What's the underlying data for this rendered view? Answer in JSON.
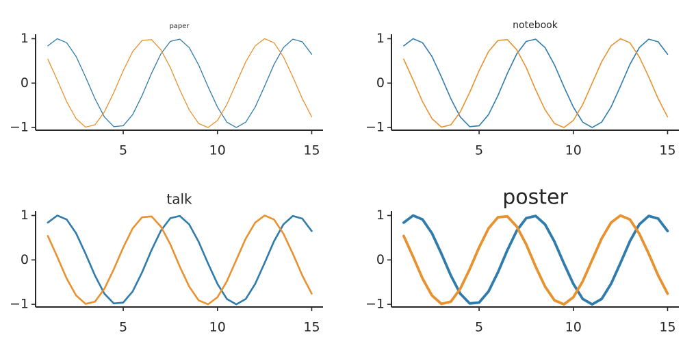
{
  "chart_data": [
    {
      "type": "line",
      "title": "paper",
      "x": [
        1,
        1.5,
        2,
        2.5,
        3,
        3.5,
        4,
        4.5,
        5,
        5.5,
        6,
        6.5,
        7,
        7.5,
        8,
        8.5,
        9,
        9.5,
        10,
        10.5,
        11,
        11.5,
        12,
        12.5,
        13,
        13.5,
        14,
        14.5,
        15
      ],
      "series": [
        {
          "color": "#2f7bab",
          "values": [
            0.84,
            1.0,
            0.91,
            0.6,
            0.14,
            -0.35,
            -0.76,
            -0.98,
            -0.96,
            -0.71,
            -0.28,
            0.22,
            0.66,
            0.94,
            0.99,
            0.8,
            0.41,
            -0.08,
            -0.54,
            -0.88,
            -1.0,
            -0.88,
            -0.54,
            -0.07,
            0.42,
            0.8,
            0.99,
            0.93,
            0.65
          ]
        },
        {
          "color": "#e8912f",
          "values": [
            0.54,
            0.07,
            -0.42,
            -0.8,
            -0.99,
            -0.94,
            -0.65,
            -0.21,
            0.28,
            0.71,
            0.96,
            0.98,
            0.75,
            0.35,
            -0.15,
            -0.6,
            -0.91,
            -1.0,
            -0.84,
            -0.48,
            0.0,
            0.48,
            0.84,
            1.0,
            0.91,
            0.59,
            0.14,
            -0.35,
            -0.76
          ]
        }
      ],
      "xlim": [
        0.35,
        15.6
      ],
      "ylim": [
        -1.06,
        1.1
      ],
      "xticks": [
        5,
        10,
        15
      ],
      "yticks": [
        {
          "value": -1,
          "label": "−1"
        },
        0,
        1
      ]
    },
    {
      "type": "line",
      "title": "notebook",
      "x": [
        1,
        1.5,
        2,
        2.5,
        3,
        3.5,
        4,
        4.5,
        5,
        5.5,
        6,
        6.5,
        7,
        7.5,
        8,
        8.5,
        9,
        9.5,
        10,
        10.5,
        11,
        11.5,
        12,
        12.5,
        13,
        13.5,
        14,
        14.5,
        15
      ],
      "series": [
        {
          "color": "#2f7bab",
          "values": [
            0.84,
            1.0,
            0.91,
            0.6,
            0.14,
            -0.35,
            -0.76,
            -0.98,
            -0.96,
            -0.71,
            -0.28,
            0.22,
            0.66,
            0.94,
            0.99,
            0.8,
            0.41,
            -0.08,
            -0.54,
            -0.88,
            -1.0,
            -0.88,
            -0.54,
            -0.07,
            0.42,
            0.8,
            0.99,
            0.93,
            0.65
          ]
        },
        {
          "color": "#e8912f",
          "values": [
            0.54,
            0.07,
            -0.42,
            -0.8,
            -0.99,
            -0.94,
            -0.65,
            -0.21,
            0.28,
            0.71,
            0.96,
            0.98,
            0.75,
            0.35,
            -0.15,
            -0.6,
            -0.91,
            -1.0,
            -0.84,
            -0.48,
            0.0,
            0.48,
            0.84,
            1.0,
            0.91,
            0.59,
            0.14,
            -0.35,
            -0.76
          ]
        }
      ],
      "xlim": [
        0.35,
        15.6
      ],
      "ylim": [
        -1.06,
        1.1
      ],
      "xticks": [
        5,
        10,
        15
      ],
      "yticks": [
        {
          "value": -1,
          "label": "−1"
        },
        0,
        1
      ]
    },
    {
      "type": "line",
      "title": "talk",
      "x": [
        1,
        1.5,
        2,
        2.5,
        3,
        3.5,
        4,
        4.5,
        5,
        5.5,
        6,
        6.5,
        7,
        7.5,
        8,
        8.5,
        9,
        9.5,
        10,
        10.5,
        11,
        11.5,
        12,
        12.5,
        13,
        13.5,
        14,
        14.5,
        15
      ],
      "series": [
        {
          "color": "#2f7bab",
          "values": [
            0.84,
            1.0,
            0.91,
            0.6,
            0.14,
            -0.35,
            -0.76,
            -0.98,
            -0.96,
            -0.71,
            -0.28,
            0.22,
            0.66,
            0.94,
            0.99,
            0.8,
            0.41,
            -0.08,
            -0.54,
            -0.88,
            -1.0,
            -0.88,
            -0.54,
            -0.07,
            0.42,
            0.8,
            0.99,
            0.93,
            0.65
          ]
        },
        {
          "color": "#e8912f",
          "values": [
            0.54,
            0.07,
            -0.42,
            -0.8,
            -0.99,
            -0.94,
            -0.65,
            -0.21,
            0.28,
            0.71,
            0.96,
            0.98,
            0.75,
            0.35,
            -0.15,
            -0.6,
            -0.91,
            -1.0,
            -0.84,
            -0.48,
            0.0,
            0.48,
            0.84,
            1.0,
            0.91,
            0.59,
            0.14,
            -0.35,
            -0.76
          ]
        }
      ],
      "xlim": [
        0.35,
        15.6
      ],
      "ylim": [
        -1.06,
        1.1
      ],
      "xticks": [
        5,
        10,
        15
      ],
      "yticks": [
        {
          "value": -1,
          "label": "−1"
        },
        0,
        1
      ]
    },
    {
      "type": "line",
      "title": "poster",
      "x": [
        1,
        1.5,
        2,
        2.5,
        3,
        3.5,
        4,
        4.5,
        5,
        5.5,
        6,
        6.5,
        7,
        7.5,
        8,
        8.5,
        9,
        9.5,
        10,
        10.5,
        11,
        11.5,
        12,
        12.5,
        13,
        13.5,
        14,
        14.5,
        15
      ],
      "series": [
        {
          "color": "#2f7bab",
          "values": [
            0.84,
            1.0,
            0.91,
            0.6,
            0.14,
            -0.35,
            -0.76,
            -0.98,
            -0.96,
            -0.71,
            -0.28,
            0.22,
            0.66,
            0.94,
            0.99,
            0.8,
            0.41,
            -0.08,
            -0.54,
            -0.88,
            -1.0,
            -0.88,
            -0.54,
            -0.07,
            0.42,
            0.8,
            0.99,
            0.93,
            0.65
          ]
        },
        {
          "color": "#e8912f",
          "values": [
            0.54,
            0.07,
            -0.42,
            -0.8,
            -0.99,
            -0.94,
            -0.65,
            -0.21,
            0.28,
            0.71,
            0.96,
            0.98,
            0.75,
            0.35,
            -0.15,
            -0.6,
            -0.91,
            -1.0,
            -0.84,
            -0.48,
            0.0,
            0.48,
            0.84,
            1.0,
            0.91,
            0.59,
            0.14,
            -0.35,
            -0.76
          ]
        }
      ],
      "xlim": [
        0.35,
        15.6
      ],
      "ylim": [
        -1.06,
        1.1
      ],
      "xticks": [
        5,
        10,
        15
      ],
      "yticks": [
        {
          "value": -1,
          "label": "−1"
        },
        0,
        1
      ]
    }
  ]
}
